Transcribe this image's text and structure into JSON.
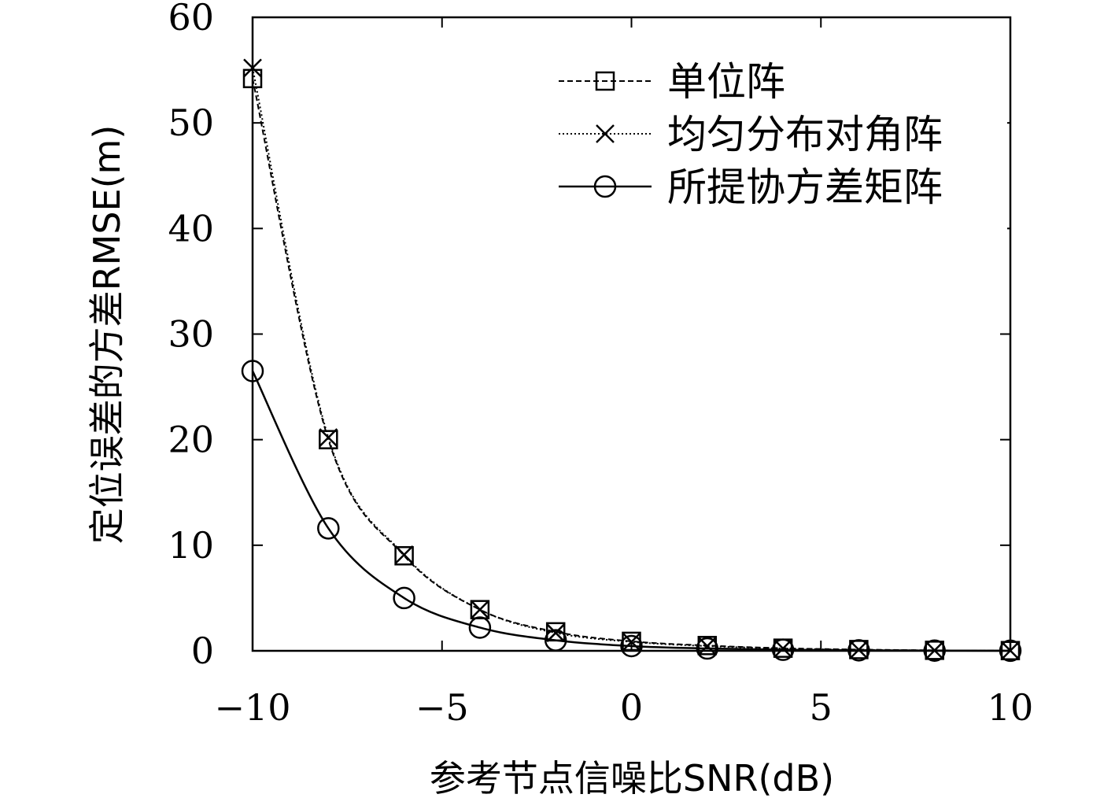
{
  "chart_data": {
    "type": "line",
    "xlabel": "参考节点信噪比SNR(dB)",
    "ylabel": "定位误差的方差RMSE(m)",
    "xlim": [
      -10,
      10
    ],
    "ylim": [
      0,
      60
    ],
    "xticks": [
      -10,
      -5,
      0,
      5,
      10
    ],
    "xtick_labels": [
      "−10",
      "−5",
      "0",
      "5",
      "10"
    ],
    "yticks": [
      0,
      10,
      20,
      30,
      40,
      50,
      60
    ],
    "ytick_labels": [
      "0",
      "10",
      "20",
      "30",
      "40",
      "50",
      "60"
    ],
    "grid": false,
    "legend_position": "top-right",
    "x": [
      -10,
      -8,
      -6,
      -4,
      -2,
      0,
      2,
      4,
      6,
      8,
      10
    ],
    "series": [
      {
        "name": "单位阵",
        "marker": "square",
        "line": "dashed",
        "values": [
          54.2,
          20.0,
          9.0,
          3.9,
          1.8,
          0.9,
          0.5,
          0.25,
          0.12,
          0.05,
          0.02
        ]
      },
      {
        "name": "均匀分布对角阵",
        "marker": "x",
        "line": "dotted",
        "values": [
          55.2,
          20.2,
          9.1,
          3.9,
          1.7,
          0.85,
          0.45,
          0.22,
          0.1,
          0.04,
          0.02
        ]
      },
      {
        "name": "所提协方差矩阵",
        "marker": "circle",
        "line": "solid",
        "values": [
          26.5,
          11.6,
          5.0,
          2.2,
          1.0,
          0.45,
          0.22,
          0.1,
          0.05,
          0.02,
          0.01
        ]
      }
    ]
  }
}
